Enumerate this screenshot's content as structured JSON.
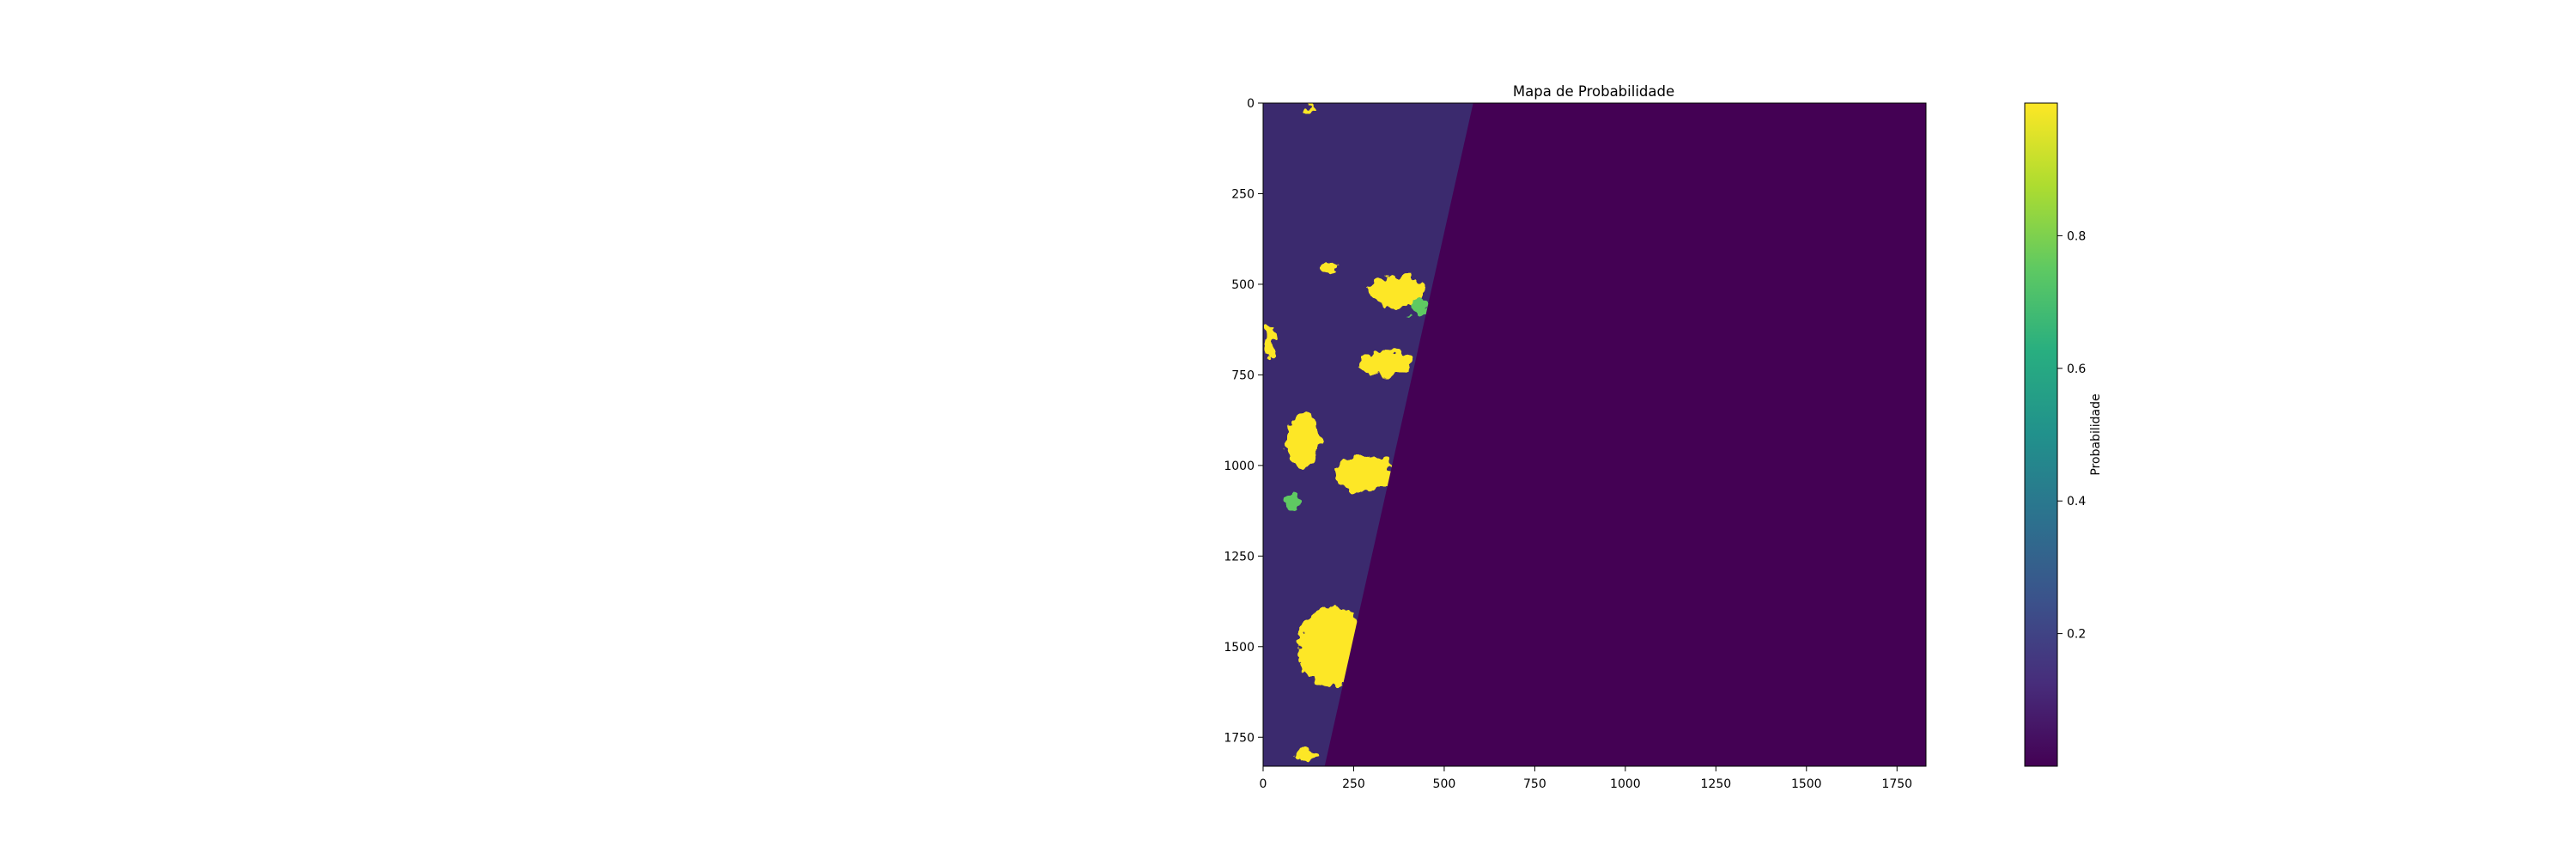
{
  "chart_data": {
    "type": "heatmap",
    "title": "Mapa de Probabilidade",
    "xlabel": "",
    "ylabel": "",
    "x_ticks": [
      0,
      250,
      500,
      750,
      1000,
      1250,
      1500,
      1750
    ],
    "y_ticks": [
      0,
      250,
      500,
      750,
      1000,
      1250,
      1500,
      1750
    ],
    "xlim": [
      0,
      1830
    ],
    "ylim": [
      1830,
      0
    ],
    "colormap": "viridis",
    "colorbar": {
      "label": "Probabilidade",
      "ticks": [
        0.2,
        0.4,
        0.6,
        0.8
      ],
      "range": [
        0,
        1
      ]
    },
    "colors": {
      "low": "#440154",
      "mid": "#21918c",
      "high": "#fde725",
      "swath_background": "#3b2a6e"
    },
    "swath": {
      "description": "valid-data region on the left; right region is zero probability",
      "boundary_top_x": 580,
      "boundary_bottom_x": 170
    },
    "hotspots": [
      {
        "x": 370,
        "y": 520,
        "rx": 80,
        "ry": 45,
        "p": 0.95
      },
      {
        "x": 340,
        "y": 720,
        "rx": 70,
        "ry": 35,
        "p": 0.95
      },
      {
        "x": 110,
        "y": 930,
        "rx": 45,
        "ry": 75,
        "p": 0.95
      },
      {
        "x": 280,
        "y": 1020,
        "rx": 80,
        "ry": 50,
        "p": 0.95
      },
      {
        "x": 190,
        "y": 1500,
        "rx": 95,
        "ry": 110,
        "p": 0.97
      },
      {
        "x": 20,
        "y": 660,
        "rx": 18,
        "ry": 40,
        "p": 0.9
      },
      {
        "x": 180,
        "y": 450,
        "rx": 25,
        "ry": 20,
        "p": 0.9
      },
      {
        "x": 120,
        "y": 1800,
        "rx": 30,
        "ry": 15,
        "p": 0.9
      },
      {
        "x": 120,
        "y": 20,
        "rx": 15,
        "ry": 10,
        "p": 0.9
      },
      {
        "x": 430,
        "y": 570,
        "rx": 25,
        "ry": 25,
        "p": 0.8
      },
      {
        "x": 80,
        "y": 1100,
        "rx": 25,
        "ry": 20,
        "p": 0.6
      }
    ]
  }
}
